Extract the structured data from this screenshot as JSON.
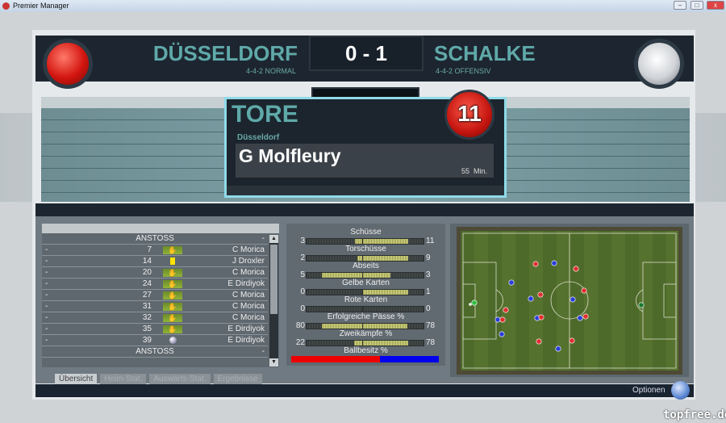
{
  "window": {
    "title": "Premier Manager",
    "buttons": [
      "minimize",
      "maximize",
      "close"
    ]
  },
  "header": {
    "home": {
      "name": "DÜSSELDORF",
      "formation": "4-4-2 NORMAL",
      "color": "#d3150f"
    },
    "away": {
      "name": "SCHALKE",
      "formation": "4-4-2 OFFENSIV",
      "color": "#e8e9ec"
    },
    "score": "0 - 1"
  },
  "goal_popup": {
    "title": "TORE",
    "team": "Düsseldorf",
    "scorer": "G Molfleury",
    "minute": "55",
    "minute_unit": "Min.",
    "shirt_number": "11"
  },
  "events": {
    "rows": [
      {
        "type": "kickoff",
        "label": "ANSTOSS",
        "right": "-"
      },
      {
        "left": "-",
        "minute": "7",
        "icon": "substitution-icon",
        "player": "C Morica"
      },
      {
        "left": "-",
        "minute": "14",
        "icon": "yellow-card-icon",
        "player": "J Droxler"
      },
      {
        "left": "-",
        "minute": "20",
        "icon": "substitution-icon",
        "player": "C Morica"
      },
      {
        "left": "-",
        "minute": "24",
        "icon": "substitution-icon",
        "player": "E Dirdiyok"
      },
      {
        "left": "-",
        "minute": "27",
        "icon": "substitution-icon",
        "player": "C Morica"
      },
      {
        "left": "-",
        "minute": "31",
        "icon": "substitution-icon",
        "player": "C Morica"
      },
      {
        "left": "-",
        "minute": "32",
        "icon": "substitution-icon",
        "player": "C Morica"
      },
      {
        "left": "-",
        "minute": "35",
        "icon": "substitution-icon",
        "player": "E Dirdiyok"
      },
      {
        "left": "-",
        "minute": "39",
        "icon": "goal-ball-icon",
        "player": "E Dirdiyok"
      },
      {
        "type": "kickoff",
        "label": "ANSTOSS",
        "right": "-"
      }
    ]
  },
  "tabs": [
    {
      "label": "Übersicht",
      "active": true
    },
    {
      "label": "Heim-Stat.",
      "active": false
    },
    {
      "label": "Auswärts-Stat.",
      "active": false
    },
    {
      "label": "Ergebnisse",
      "active": false
    }
  ],
  "stats": [
    {
      "label": "Schüsse",
      "home": 3,
      "away": 11
    },
    {
      "label": "Torschüsse",
      "home": 2,
      "away": 9
    },
    {
      "label": "Abseits",
      "home": 5,
      "away": 3
    },
    {
      "label": "Gelbe Karten",
      "home": 0,
      "away": 1
    },
    {
      "label": "Rote Karten",
      "home": 0,
      "away": 0
    },
    {
      "label": "Erfolgreiche Pässe %",
      "home": 80,
      "away": 78
    },
    {
      "label": "Zweikämpfe %",
      "home": 22,
      "away": 78
    }
  ],
  "possession": {
    "label": "Ballbesitz %",
    "home_percent": 60,
    "away_percent": 40,
    "home_color": "#ee0000",
    "away_color": "#0000ee"
  },
  "footer": {
    "options_label": "Optionen"
  },
  "watermark": "topfree.de"
}
